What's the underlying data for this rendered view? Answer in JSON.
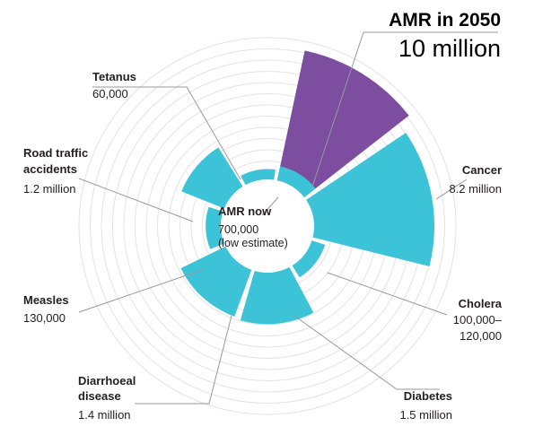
{
  "colors": {
    "current": "#3cc3d7",
    "amr_2050": "#7d4e9f",
    "ring": "#e3e3e3",
    "leader": "#999999",
    "text": "#231f20"
  },
  "chart_data": {
    "type": "polar-area",
    "center": {
      "title": "AMR now",
      "value_line1": "700,000",
      "value_line2": "(low estimate)"
    },
    "highlight": {
      "title": "AMR in 2050",
      "value": "10 million",
      "deaths": 10000000
    },
    "categories": [
      {
        "name": "Tetanus",
        "value_text": "60,000",
        "deaths": 60000
      },
      {
        "name": "Cancer",
        "value_text": "8.2 million",
        "deaths": 8200000
      },
      {
        "name": "Cholera",
        "value_text": "100,000–120,000",
        "value_line1": "100,000–",
        "value_line2": "120,000",
        "deaths": 110000
      },
      {
        "name": "Diabetes",
        "value_text": "1.5 million",
        "deaths": 1500000
      },
      {
        "name": "Diarrhoeal disease",
        "name_line1": "Diarrhoeal",
        "name_line2": "disease",
        "value_text": "1.4 million",
        "deaths": 1400000
      },
      {
        "name": "Measles",
        "value_text": "130,000",
        "deaths": 130000
      },
      {
        "name": "Road traffic accidents",
        "name_line1": "Road traffic",
        "name_line2": "accidents",
        "value_text": "1.2 million",
        "deaths": 1200000
      }
    ]
  }
}
